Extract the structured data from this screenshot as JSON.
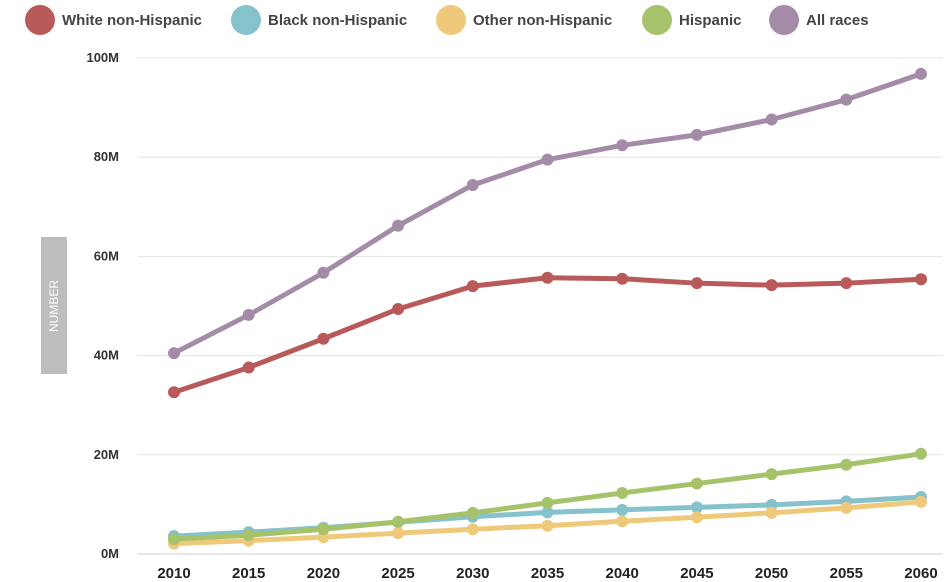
{
  "chart_data": {
    "type": "line",
    "x": [
      2010,
      2015,
      2020,
      2025,
      2030,
      2035,
      2040,
      2045,
      2050,
      2055,
      2060
    ],
    "ylabel": "NUMBER",
    "ylim": [
      0,
      100
    ],
    "y_ticks": [
      {
        "value": 0,
        "label": "0M"
      },
      {
        "value": 20,
        "label": "20M"
      },
      {
        "value": 40,
        "label": "40M"
      },
      {
        "value": 60,
        "label": "60M"
      },
      {
        "value": 80,
        "label": "80M"
      },
      {
        "value": 100,
        "label": "100M"
      }
    ],
    "x_tick_labels": [
      "2010",
      "2015",
      "2020",
      "2025",
      "2030",
      "2035",
      "2040",
      "2045",
      "2050",
      "2055",
      "2060"
    ],
    "grid": true,
    "legend_position": "top-left",
    "series": [
      {
        "name": "White non-Hispanic",
        "color": "#b85a5a",
        "values": [
          32.6,
          37.6,
          43.4,
          49.4,
          54.0,
          55.7,
          55.5,
          54.6,
          54.2,
          54.6,
          55.4
        ]
      },
      {
        "name": "Black non-Hispanic",
        "color": "#86c2cb",
        "values": [
          3.6,
          4.4,
          5.3,
          6.4,
          7.5,
          8.4,
          8.9,
          9.4,
          9.9,
          10.6,
          11.5
        ]
      },
      {
        "name": "Other non-Hispanic",
        "color": "#efc97a",
        "values": [
          2.1,
          2.7,
          3.4,
          4.2,
          5.0,
          5.7,
          6.6,
          7.4,
          8.3,
          9.3,
          10.5
        ]
      },
      {
        "name": "Hispanic",
        "color": "#a6c36b",
        "values": [
          3.0,
          3.8,
          5.0,
          6.5,
          8.3,
          10.3,
          12.3,
          14.2,
          16.1,
          18.0,
          20.2
        ]
      },
      {
        "name": "All races",
        "color": "#a48ca8",
        "values": [
          40.5,
          48.2,
          56.7,
          66.2,
          74.4,
          79.5,
          82.4,
          84.5,
          87.6,
          91.6,
          96.8
        ]
      }
    ]
  }
}
